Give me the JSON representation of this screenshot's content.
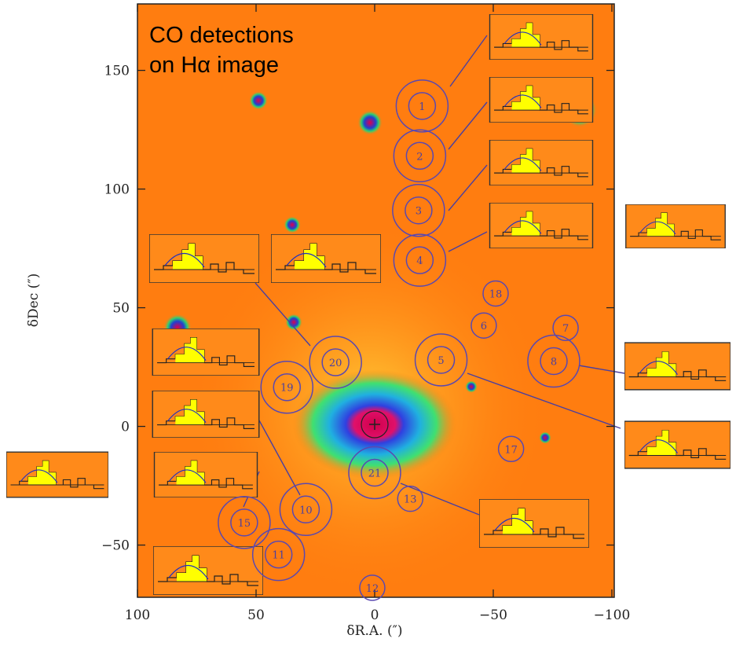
{
  "chart_data": {
    "type": "image-map",
    "title": [
      "CO detections",
      "on Hα image"
    ],
    "x_label": "δR.A. (″)",
    "y_label": "δDec (″)",
    "xlim": [
      100,
      -101
    ],
    "ylim": [
      -72,
      178
    ],
    "xticks": [
      100,
      50,
      0,
      {
        "value": -50,
        "label": "−50"
      },
      {
        "value": -100,
        "label": "−100"
      }
    ],
    "yticks": [
      {
        "value": -50,
        "label": "−50"
      },
      0,
      50,
      100,
      150
    ],
    "detections": [
      {
        "label": "1",
        "x": -20,
        "y": 135
      },
      {
        "label": "2",
        "x": -19,
        "y": 114
      },
      {
        "label": "3",
        "x": -18.5,
        "y": 91
      },
      {
        "label": "4",
        "x": -19,
        "y": 70
      },
      {
        "label": "5",
        "x": -28,
        "y": 28
      },
      {
        "label": "8",
        "x": -75.5,
        "y": 27.5
      },
      {
        "label": "19",
        "x": 37,
        "y": 16.5
      },
      {
        "label": "20",
        "x": 16.5,
        "y": 27
      },
      {
        "label": "21",
        "x": 0,
        "y": -19.5
      },
      {
        "label": "10",
        "x": 29,
        "y": -35
      },
      {
        "label": "15",
        "x": 55,
        "y": -40.5
      },
      {
        "label": "11",
        "x": 40.5,
        "y": -54
      }
    ],
    "regions": [
      {
        "label": "6",
        "x": -46,
        "y": 42.5
      },
      {
        "label": "7",
        "x": -80.5,
        "y": 41.5
      },
      {
        "label": "18",
        "x": -51,
        "y": 56
      },
      {
        "label": "17",
        "x": -57.5,
        "y": -9.5
      },
      {
        "label": "13",
        "x": -15,
        "y": -30.5
      },
      {
        "label": "12",
        "x": 1,
        "y": -68
      }
    ]
  }
}
